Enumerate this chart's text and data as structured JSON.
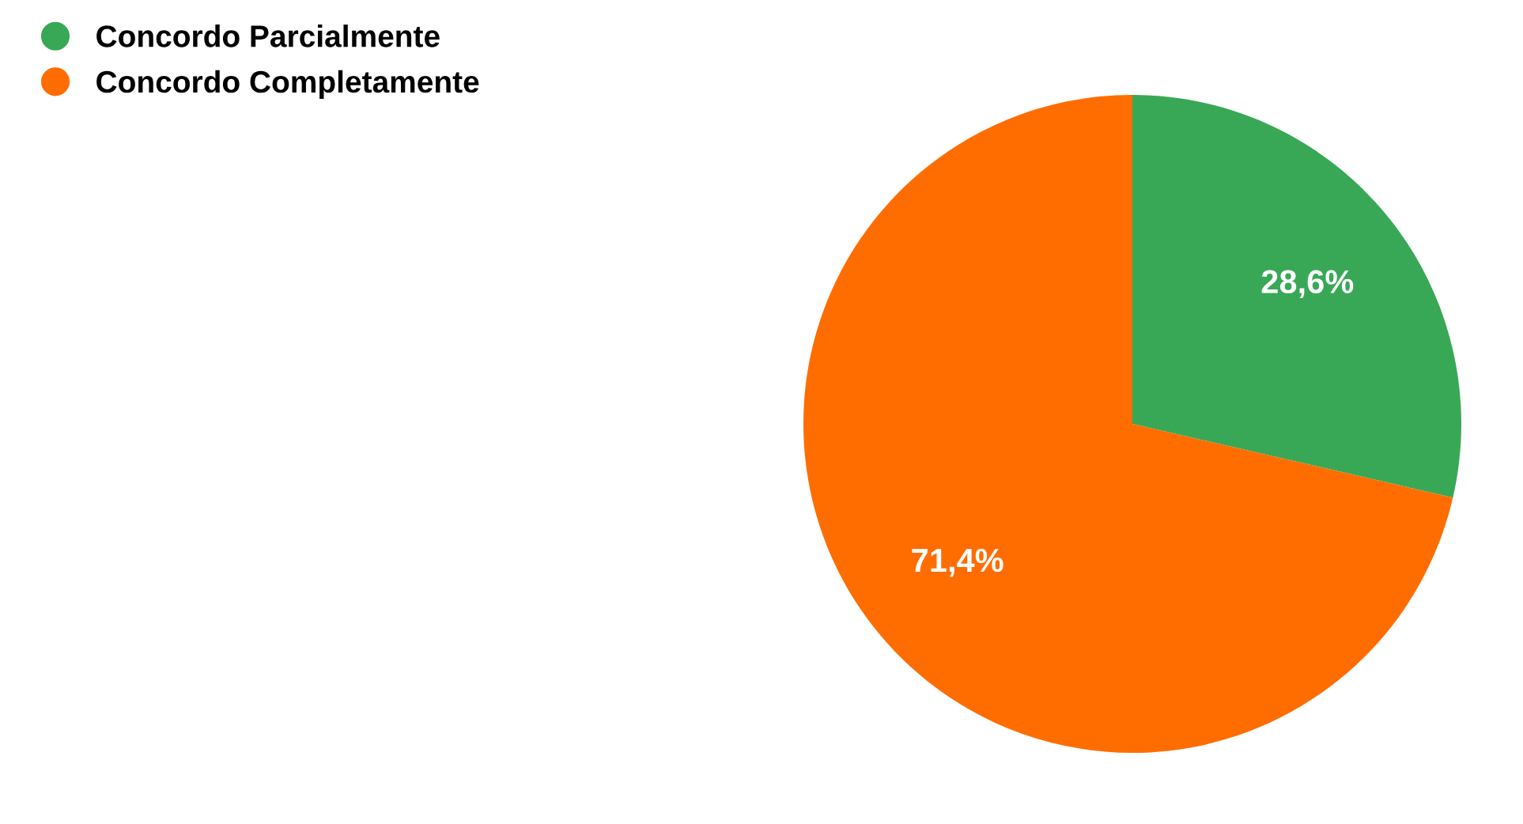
{
  "chart_data": {
    "type": "pie",
    "categories": [
      "Concordo Parcialmente",
      "Concordo Completamente"
    ],
    "values": [
      28.6,
      71.4
    ],
    "colors": [
      "#38a856",
      "#ff6d00"
    ],
    "value_labels": [
      "28,6%",
      "71,4%"
    ],
    "legend": "top left"
  }
}
